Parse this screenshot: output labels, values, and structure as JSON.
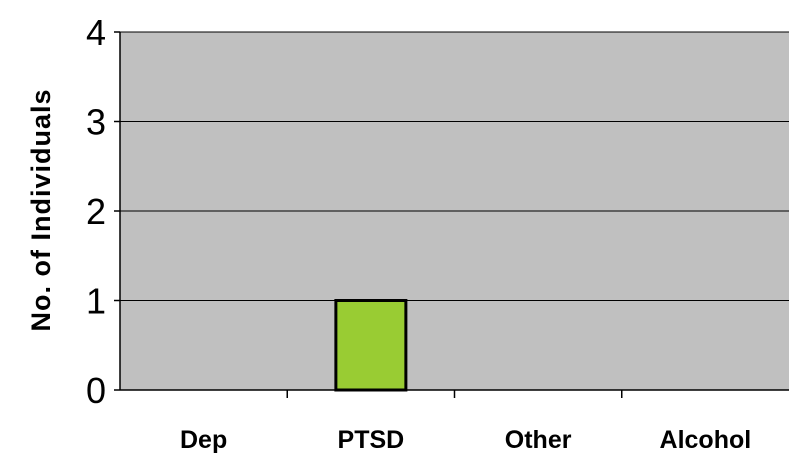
{
  "chart_data": {
    "type": "bar",
    "categories": [
      "Dep",
      "PTSD",
      "Other",
      "Alcohol"
    ],
    "values": [
      0,
      1,
      0,
      0
    ],
    "ylabel": "No. of Individuals",
    "xlabel": "",
    "ylim": [
      0,
      4
    ],
    "yticks": [
      "0",
      "1",
      "2",
      "3",
      "4"
    ],
    "grid": true,
    "legend": "none",
    "colors": {
      "plot_background": "#c0c0c0",
      "bar_fill": "#99cc33",
      "bar_stroke": "#000000",
      "gridline": "#000000"
    }
  }
}
